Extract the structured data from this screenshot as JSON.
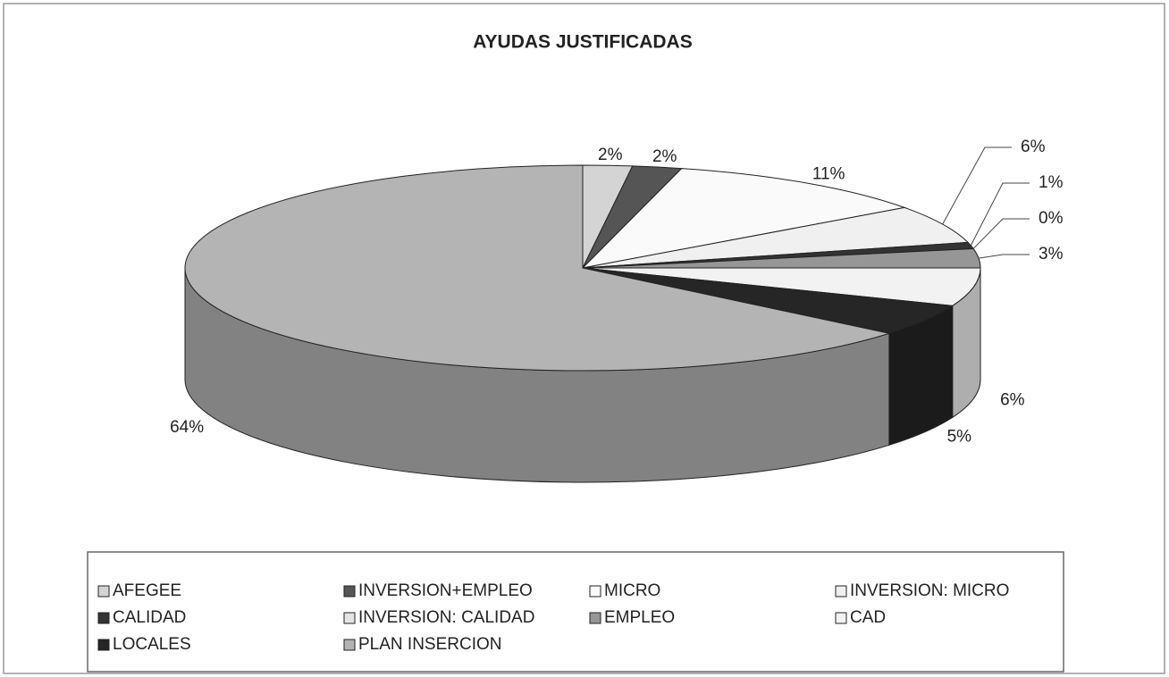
{
  "chart_data": {
    "type": "pie",
    "title": "AYUDAS JUSTIFICADAS",
    "categories": [
      "AFEGEE",
      "INVERSION+EMPLEO",
      "MICRO",
      "INVERSION: MICRO",
      "CALIDAD",
      "INVERSION: CALIDAD",
      "EMPLEO",
      "CAD",
      "LOCALES",
      "PLAN INSERCION"
    ],
    "values": [
      2,
      2,
      11,
      6,
      1,
      0,
      3,
      6,
      5,
      64
    ],
    "value_labels": [
      "2%",
      "2%",
      "11%",
      "6%",
      "1%",
      "0%",
      "3%",
      "6%",
      "5%",
      "64%"
    ],
    "colors": [
      "#d4d4d4",
      "#555555",
      "#fafafa",
      "#f0f0f0",
      "#333333",
      "#e4e4e4",
      "#969696",
      "#f2f2f2",
      "#262626",
      "#b4b4b4"
    ],
    "legend": "bottom"
  }
}
